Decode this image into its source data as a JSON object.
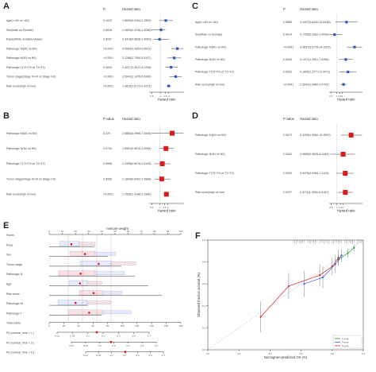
{
  "panels": {
    "A": {
      "label": "A",
      "col_p": "P",
      "col_hr": "Hazard ratio",
      "xlabel": "Hazard ratio",
      "ticks": [
        "0.5",
        "1",
        "1.5",
        "2"
      ],
      "rows": [
        {
          "name": "Age(>=60 vs <60)",
          "p": "0.1020",
          "hr_text": "1.5600(0.9154-2.7800)",
          "hr": 1.56,
          "lo": 0.92,
          "hi": 2.78
        },
        {
          "name": "Sex(Male vs Female)",
          "p": "0.8816",
          "hr_text": "1.0609(0.4746-1.5086)",
          "hr": 1.06,
          "lo": 0.47,
          "hi": 1.51
        },
        {
          "name": "Race(White vs Black+Asian)",
          "p": "0.6037",
          "hr_text": "0.9418(0.5836-2.0640)",
          "hr": 0.94,
          "lo": 0.58,
          "hi": 2.06
        },
        {
          "name": "Pathologic M(M1 vs M0)",
          "p": "<0.0001",
          "hr_text": "4.0084(2.4394-6.5872)",
          "hr": 4.0,
          "lo": 2.4,
          "hi": 6.6
        },
        {
          "name": "Pathologic N(N1 vs N0)",
          "p": "<0.0001",
          "hr_text": "3.1288(1.7958-5.5107)",
          "hr": 3.1,
          "lo": 1.8,
          "hi": 5.5
        },
        {
          "name": "Pathologic T(T3+T4 vs T1+T2)",
          "p": "0.0003",
          "hr_text": "2.4017(1.4937-4.1208)",
          "hr": 2.4,
          "lo": 1.5,
          "hi": 4.1
        },
        {
          "name": "Tumor stage(Stage III+IV vs Stage I+II)",
          "p": "<0.0001",
          "hr_text": "3.5041(2.1476-5.6990)",
          "hr": 3.5,
          "lo": 2.1,
          "hi": 5.7
        },
        {
          "name": "Risk score(high vs low)",
          "p": "<0.0001",
          "hr_text": "1.9815(1.6173-2.4273)",
          "hr": 1.98,
          "lo": 1.62,
          "hi": 2.43
        }
      ]
    },
    "B": {
      "label": "B",
      "col_p": "P value",
      "col_hr": "Hazard ratio",
      "xlabel": "Hazard ratio",
      "ticks": [
        "0.5",
        "1",
        "1.5",
        "2"
      ],
      "rows": [
        {
          "name": "Pathologic M(M1 vs M0)",
          "p": "0.229",
          "hr_text": "2.8863(0.4988-7.6508)",
          "hr": 2.89,
          "lo": 0.5,
          "hi": 7.65
        },
        {
          "name": "Pathologic N(N1 vs N0)",
          "p": "0.0734",
          "hr_text": "1.6961(0.9510-3.3948)",
          "hr": 1.7,
          "lo": 0.95,
          "hi": 3.39
        },
        {
          "name": "Pathologic T(T3+T4 vs T1+T2)",
          "p": "0.5556",
          "hr_text": "1.2408(0.6076-2.5128)",
          "hr": 1.24,
          "lo": 0.61,
          "hi": 2.51
        },
        {
          "name": "Tumor stage(Stage III+IV vs Stage I+II)",
          "p": "0.5956",
          "hr_text": "1.1804(0.6424-2.3888)",
          "hr": 1.18,
          "lo": 0.64,
          "hi": 2.39
        },
        {
          "name": "Risk score(high vs low)",
          "p": "<0.0001",
          "hr_text": "1.7608(1.4188-2.1840)",
          "hr": 1.76,
          "lo": 1.42,
          "hi": 2.18
        }
      ]
    },
    "C": {
      "label": "C",
      "col_p": "P",
      "col_hr": "Hazard ratio",
      "xlabel": "Hazard ratio",
      "ticks": [
        "0.5",
        "1",
        "1.5",
        "2"
      ],
      "rows": [
        {
          "name": "Age(>=60 vs <60)",
          "p": "0.0865",
          "hr_text": "3.4497(0.8440-13.6436)",
          "hr": 3.45,
          "lo": 0.84,
          "hi": 13.64
        },
        {
          "name": "Sex(Male vs Female)",
          "p": "0.6014",
          "hr_text": "0.7766(0.2982-2.0008)",
          "hr": 0.78,
          "lo": 0.3,
          "hi": 2.0
        },
        {
          "name": "Pathologic M(M1 vs M0)",
          "p": "<0.0001",
          "hr_text": "9.4557(3.6778-24.3102)",
          "hr": 9.46,
          "lo": 3.68,
          "hi": 24.31
        },
        {
          "name": "Pathologic N(N1 vs N0)",
          "p": "0.0044",
          "hr_text": "3.1471(1.2961-7.6396)",
          "hr": 3.15,
          "lo": 1.3,
          "hi": 7.64
        },
        {
          "name": "Pathologic T(T3+T4 vs T1+T2)",
          "p": "0.0032",
          "hr_text": "4.1605(1.3771-11.9072)",
          "hr": 4.16,
          "lo": 1.38,
          "hi": 11.91
        },
        {
          "name": "Risk score(high vs low)",
          "p": "<0.0001",
          "hr_text": "2.3942(1.6480-3.4793)",
          "hr": 2.39,
          "lo": 1.65,
          "hi": 3.48
        }
      ]
    },
    "D": {
      "label": "D",
      "col_p": "P value",
      "col_hr": "Hazard ratio",
      "xlabel": "Hazard ratio",
      "ticks": [
        "0.5",
        "1",
        "1.5",
        "2"
      ],
      "rows": [
        {
          "name": "Pathologic M(M1 vs M0)",
          "p": "0.0073",
          "hr_text": "5.3205(1.5960-19.3592)",
          "hr": 5.32,
          "lo": 1.6,
          "hi": 19.36
        },
        {
          "name": "Pathologic N(N1 vs N0)",
          "p": "0.3402",
          "hr_text": "2.0668(0.4645-8.2446)",
          "hr": 2.07,
          "lo": 0.46,
          "hi": 8.24
        },
        {
          "name": "Pathologic T(T3+T4 vs T1+T2)",
          "p": "0.0309",
          "hr_text": "2.6478(0.9484-7.1124)",
          "hr": 2.65,
          "lo": 0.95,
          "hi": 7.11
        },
        {
          "name": "Risk score(high vs low)",
          "p": "0.0297",
          "hr_text": "2.6711(1.0960-6.5167)",
          "hr": 2.67,
          "lo": 1.1,
          "hi": 6.52
        }
      ]
    },
    "E": {
      "label": "E",
      "title": "nomore weight",
      "rows": [
        {
          "name": "Points"
        },
        {
          "name": "Race"
        },
        {
          "name": "Sex"
        },
        {
          "name": "Tumor stage"
        },
        {
          "name": "Pathologic N"
        },
        {
          "name": "Age"
        },
        {
          "name": "Risk score"
        },
        {
          "name": "Pathologic M"
        },
        {
          "name": "Pathologic T"
        },
        {
          "name": "Total points"
        },
        {
          "name": "Pr( survival_time < 1 )"
        },
        {
          "name": "Pr( survival_time < 3 )"
        },
        {
          "name": "Pr( survival_time < 5 )"
        }
      ],
      "points_ticks": [
        "0",
        "10",
        "20",
        "30",
        "40",
        "50",
        "60",
        "70",
        "80",
        "90",
        "100"
      ],
      "total_ticks": [
        "0",
        "20",
        "40",
        "60",
        "80",
        "100",
        "120",
        "140",
        "160",
        "180"
      ],
      "pr_ticks": [
        "0.01",
        "0.05",
        "0.1",
        "0.2",
        "0.3",
        "0.5",
        "0.7"
      ]
    },
    "F": {
      "label": "F",
      "xlabel": "Nomogram-predicted OS (%)",
      "ylabel": "Observed fraction survival (%)",
      "xlim": [
        0,
        1
      ],
      "ylim": [
        0,
        1
      ],
      "ticks": [
        "0.0",
        "0.2",
        "0.4",
        "0.6",
        "0.8",
        "1.0"
      ],
      "series": [
        {
          "name": "1-year",
          "color": "#2ca02c",
          "x": [
            0.84,
            0.9,
            0.94
          ],
          "y": [
            0.82,
            0.88,
            0.93
          ],
          "err": [
            0.05,
            0.04,
            0.03
          ]
        },
        {
          "name": "3-year",
          "color": "#3a5bd9",
          "x": [
            0.62,
            0.74,
            0.82,
            0.86
          ],
          "y": [
            0.6,
            0.66,
            0.78,
            0.86
          ],
          "err": [
            0.12,
            0.1,
            0.08,
            0.06
          ]
        },
        {
          "name": "5-year",
          "color": "#d62728",
          "x": [
            0.34,
            0.52,
            0.72,
            0.8,
            0.84
          ],
          "y": [
            0.3,
            0.58,
            0.68,
            0.76,
            0.84
          ],
          "err": [
            0.14,
            0.12,
            0.1,
            0.08,
            0.07
          ]
        }
      ],
      "legend_position": "bottom-right"
    }
  }
}
